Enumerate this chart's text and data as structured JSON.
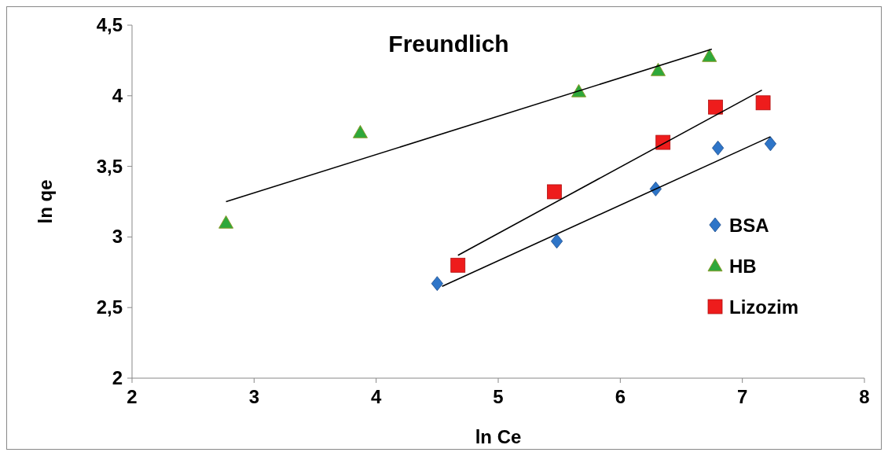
{
  "chart_data": {
    "type": "scatter",
    "title": "Freundlich",
    "xlabel": "ln Ce",
    "ylabel": "ln qe",
    "xlim": [
      2,
      8
    ],
    "xticks": [
      2,
      3,
      4,
      5,
      6,
      7,
      8
    ],
    "ylim": [
      2,
      4.5
    ],
    "yticks": [
      2,
      {
        "value": 2.5,
        "label": "2,5"
      },
      3,
      {
        "value": 3.5,
        "label": "3,5"
      },
      4,
      {
        "value": 4.5,
        "label": "4,5"
      }
    ],
    "grid": false,
    "legend": "right",
    "series": [
      {
        "name": "BSA",
        "color": "#2e75c8",
        "marker": "diamond",
        "x": [
          4.5,
          5.48,
          6.29,
          6.8,
          7.23
        ],
        "values": [
          2.67,
          2.97,
          3.34,
          3.63,
          3.66
        ]
      },
      {
        "name": "HB",
        "color": "#2ea83a",
        "marker": "triangle",
        "x": [
          2.77,
          3.87,
          5.66,
          6.31,
          6.73
        ],
        "values": [
          3.1,
          3.74,
          4.03,
          4.18,
          4.28
        ]
      },
      {
        "name": "Lizozim",
        "color": "#ee1c1c",
        "marker": "square",
        "x": [
          4.67,
          5.46,
          6.35,
          6.78,
          7.17
        ],
        "values": [
          2.8,
          3.32,
          3.67,
          3.92,
          3.95
        ]
      },
      {
        "type": "line",
        "color": "#000000",
        "marker": "none",
        "x": [
          4.54,
          7.23
        ],
        "values": [
          2.65,
          3.71
        ]
      },
      {
        "type": "line",
        "color": "#000000",
        "marker": "none",
        "x": [
          2.77,
          6.75
        ],
        "values": [
          3.25,
          4.33
        ]
      },
      {
        "type": "line",
        "color": "#000000",
        "marker": "none",
        "x": [
          4.67,
          7.16
        ],
        "values": [
          2.87,
          4.04
        ]
      }
    ]
  }
}
